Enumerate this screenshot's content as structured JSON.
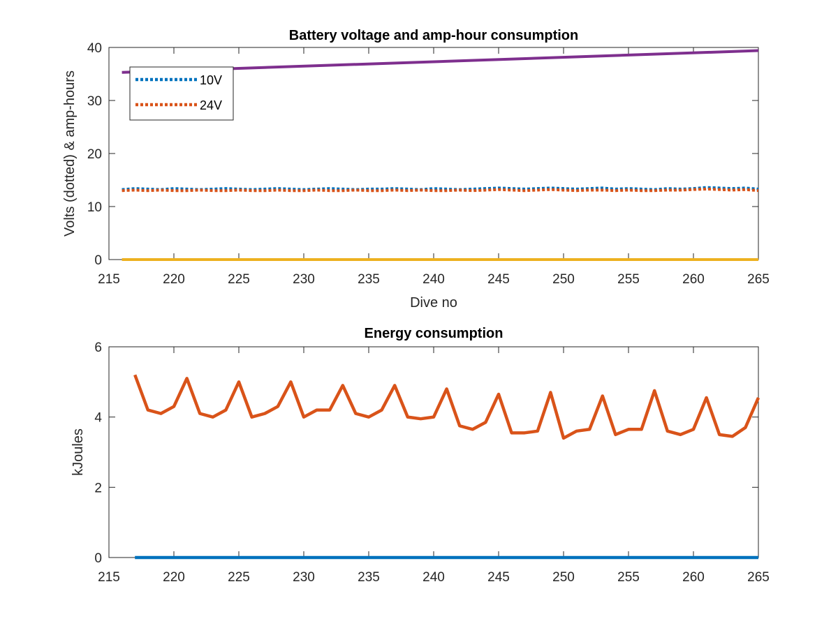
{
  "chart_data": [
    {
      "type": "line",
      "title": "Battery voltage and amp-hour consumption",
      "xlabel": "Dive no",
      "ylabel": "Volts (dotted) & amp-hours",
      "xlim": [
        215,
        265
      ],
      "ylim": [
        0,
        40
      ],
      "xticks": [
        215,
        220,
        225,
        230,
        235,
        240,
        245,
        250,
        255,
        260,
        265
      ],
      "yticks": [
        0,
        10,
        20,
        30,
        40
      ],
      "grid": false,
      "legend_position": "top-left",
      "x_range": [
        216,
        265
      ],
      "series": [
        {
          "name": "10V",
          "style": "dotted",
          "color": "#0072BD",
          "x": [
            216,
            217,
            218,
            219,
            220,
            221,
            222,
            223,
            224,
            225,
            226,
            227,
            228,
            229,
            230,
            231,
            232,
            233,
            234,
            235,
            236,
            237,
            238,
            239,
            240,
            241,
            242,
            243,
            244,
            245,
            246,
            247,
            248,
            249,
            250,
            251,
            252,
            253,
            254,
            255,
            256,
            257,
            258,
            259,
            260,
            261,
            262,
            263,
            264,
            265
          ],
          "values": [
            13.2,
            13.4,
            13.3,
            13.2,
            13.4,
            13.3,
            13.2,
            13.3,
            13.4,
            13.3,
            13.2,
            13.3,
            13.4,
            13.3,
            13.2,
            13.3,
            13.4,
            13.3,
            13.2,
            13.3,
            13.3,
            13.4,
            13.3,
            13.2,
            13.4,
            13.3,
            13.2,
            13.3,
            13.4,
            13.5,
            13.4,
            13.3,
            13.4,
            13.5,
            13.4,
            13.3,
            13.4,
            13.5,
            13.3,
            13.4,
            13.3,
            13.2,
            13.4,
            13.3,
            13.4,
            13.6,
            13.5,
            13.4,
            13.5,
            13.3
          ]
        },
        {
          "name": "24V",
          "style": "dotted",
          "color": "#D95319",
          "x": [
            216,
            217,
            218,
            219,
            220,
            221,
            222,
            223,
            224,
            225,
            226,
            227,
            228,
            229,
            230,
            231,
            232,
            233,
            234,
            235,
            236,
            237,
            238,
            239,
            240,
            241,
            242,
            243,
            244,
            245,
            246,
            247,
            248,
            249,
            250,
            251,
            252,
            253,
            254,
            255,
            256,
            257,
            258,
            259,
            260,
            261,
            262,
            263,
            264,
            265
          ],
          "values": [
            13.0,
            13.1,
            13.0,
            13.1,
            13.0,
            13.0,
            13.1,
            13.0,
            13.0,
            13.1,
            13.0,
            13.0,
            13.1,
            13.0,
            13.0,
            13.1,
            13.0,
            13.0,
            13.1,
            13.0,
            13.0,
            13.1,
            13.0,
            13.1,
            13.0,
            13.0,
            13.1,
            13.0,
            13.1,
            13.2,
            13.1,
            13.0,
            13.1,
            13.2,
            13.1,
            13.0,
            13.1,
            13.1,
            13.0,
            13.1,
            13.0,
            13.0,
            13.1,
            13.1,
            13.2,
            13.3,
            13.2,
            13.1,
            13.2,
            13.0
          ]
        },
        {
          "style": "solid",
          "color": "#EDB120",
          "x": [
            216,
            265
          ],
          "values": [
            0,
            0
          ]
        },
        {
          "style": "solid",
          "color": "#7E2F8E",
          "x": [
            216,
            265
          ],
          "values": [
            35.3,
            39.4
          ]
        }
      ]
    },
    {
      "type": "line",
      "title": "Energy consumption",
      "xlabel": "",
      "ylabel": "kJoules",
      "xlim": [
        215,
        265
      ],
      "ylim": [
        0,
        6
      ],
      "xticks": [
        215,
        220,
        225,
        230,
        235,
        240,
        245,
        250,
        255,
        260,
        265
      ],
      "yticks": [
        0,
        2,
        4,
        6
      ],
      "grid": false,
      "series": [
        {
          "style": "solid",
          "color": "#0072BD",
          "x": [
            217,
            265
          ],
          "values": [
            0,
            0
          ]
        },
        {
          "style": "solid",
          "color": "#D95319",
          "x": [
            217,
            218,
            219,
            220,
            221,
            222,
            223,
            224,
            225,
            226,
            227,
            228,
            229,
            230,
            231,
            232,
            233,
            234,
            235,
            236,
            237,
            238,
            239,
            240,
            241,
            242,
            243,
            244,
            245,
            246,
            247,
            248,
            249,
            250,
            251,
            252,
            253,
            254,
            255,
            256,
            257,
            258,
            259,
            260,
            261,
            262,
            263,
            264,
            265
          ],
          "values": [
            5.2,
            4.2,
            4.1,
            4.3,
            5.1,
            4.1,
            4.0,
            4.2,
            5.0,
            4.0,
            4.1,
            4.3,
            5.0,
            4.0,
            4.2,
            4.2,
            4.9,
            4.1,
            4.0,
            4.2,
            4.9,
            4.0,
            3.95,
            4.0,
            4.8,
            3.75,
            3.65,
            3.85,
            4.65,
            3.55,
            3.55,
            3.6,
            4.7,
            3.4,
            3.6,
            3.65,
            4.6,
            3.5,
            3.65,
            3.65,
            4.75,
            3.6,
            3.5,
            3.65,
            4.55,
            3.5,
            3.45,
            3.7,
            4.55
          ]
        }
      ]
    }
  ]
}
